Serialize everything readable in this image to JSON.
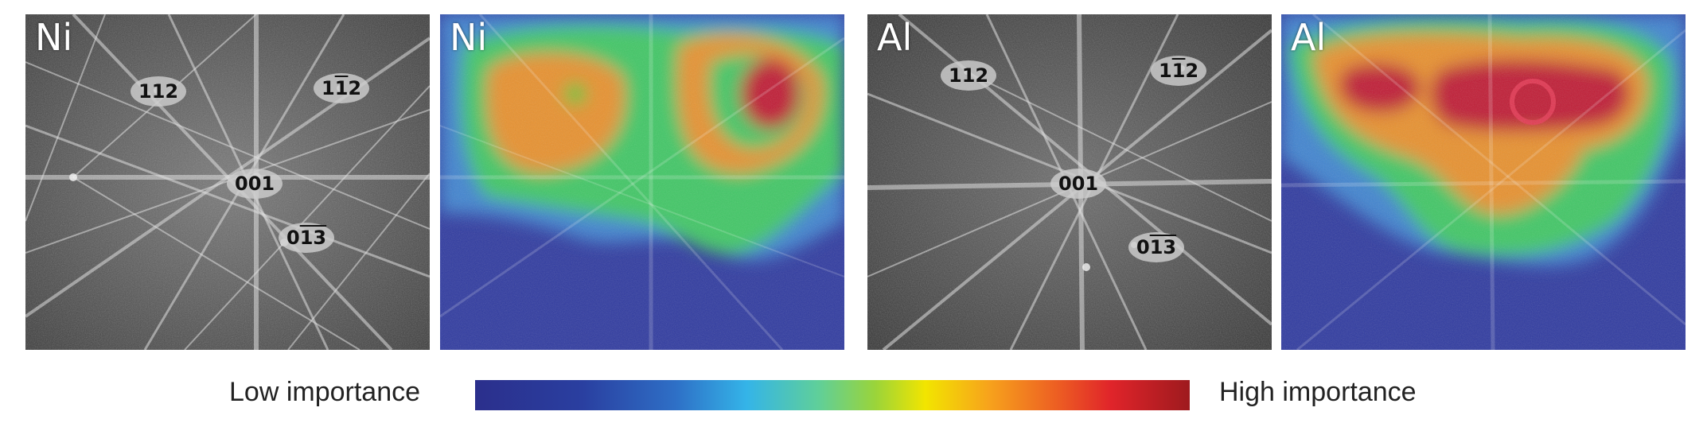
{
  "panels": [
    {
      "label": "Ni",
      "type": "kikuchi-pattern",
      "zones": [
        {
          "text": "112",
          "has_bar": false
        },
        {
          "pre": "1",
          "bar": "1",
          "post": "2",
          "has_bar": true
        },
        {
          "text": "001",
          "has_bar": false
        },
        {
          "pre": "0",
          "bar": "13",
          "post": "",
          "has_bar": true
        }
      ]
    },
    {
      "label": "Ni",
      "type": "importance-heatmap"
    },
    {
      "label": "Al",
      "type": "kikuchi-pattern",
      "zones": [
        {
          "text": "112",
          "has_bar": false
        },
        {
          "pre": "1",
          "bar": "1",
          "post": "2",
          "has_bar": true
        },
        {
          "text": "001",
          "has_bar": false
        },
        {
          "pre": "0",
          "bar": "13",
          "post": "",
          "has_bar": true
        }
      ]
    },
    {
      "label": "Al",
      "type": "importance-heatmap"
    }
  ],
  "legend": {
    "low_label": "Low importance",
    "high_label": "High importance",
    "colormap": [
      "#2b2f8c",
      "#2e6fc6",
      "#34b4e8",
      "#5fcf9a",
      "#9ad43a",
      "#f2e500",
      "#f7a21c",
      "#ec5a23",
      "#e0242a",
      "#9e1a1e"
    ]
  }
}
